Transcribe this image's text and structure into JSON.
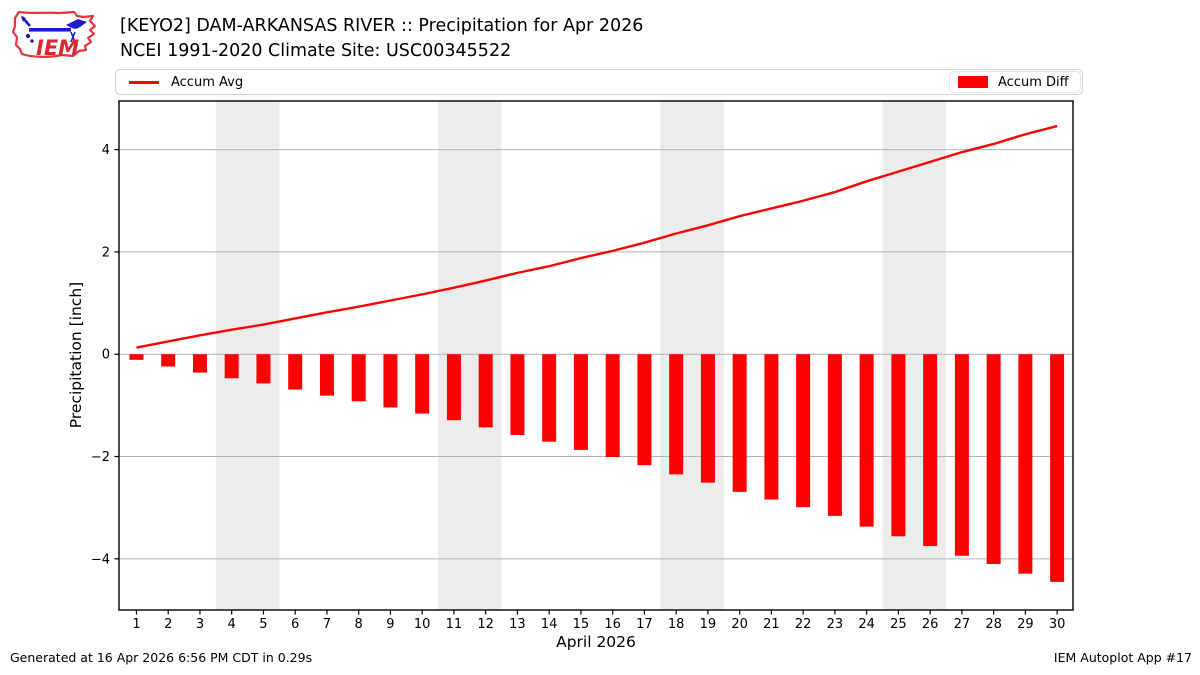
{
  "header": {
    "logo_text": "IEM"
  },
  "chart_data": {
    "type": "bar",
    "title": "[KEYO2] DAM-ARKANSAS RIVER :: Precipitation for Apr 2026",
    "subtitle": "NCEI 1991-2020 Climate Site: USC00345522",
    "xlabel": "April 2026",
    "ylabel": "Precipitation [inch]",
    "x": [
      1,
      2,
      3,
      4,
      5,
      6,
      7,
      8,
      9,
      10,
      11,
      12,
      13,
      14,
      15,
      16,
      17,
      18,
      19,
      20,
      21,
      22,
      23,
      24,
      25,
      26,
      27,
      28,
      29,
      30
    ],
    "series": [
      {
        "name": "Accum Avg",
        "type": "line",
        "color": "#ff0000",
        "values": [
          0.13,
          0.25,
          0.37,
          0.48,
          0.58,
          0.7,
          0.82,
          0.93,
          1.05,
          1.17,
          1.3,
          1.44,
          1.59,
          1.72,
          1.88,
          2.02,
          2.18,
          2.36,
          2.52,
          2.7,
          2.85,
          3.0,
          3.17,
          3.38,
          3.57,
          3.76,
          3.95,
          4.11,
          4.3,
          4.46
        ]
      },
      {
        "name": "Accum Diff",
        "type": "bar",
        "color": "#ff0000",
        "values": [
          -0.11,
          -0.24,
          -0.36,
          -0.47,
          -0.57,
          -0.69,
          -0.81,
          -0.92,
          -1.04,
          -1.16,
          -1.29,
          -1.43,
          -1.58,
          -1.71,
          -1.87,
          -2.01,
          -2.17,
          -2.35,
          -2.51,
          -2.69,
          -2.84,
          -2.99,
          -3.16,
          -3.37,
          -3.56,
          -3.75,
          -3.94,
          -4.1,
          -4.29,
          -4.45
        ]
      }
    ],
    "xlim": [
      0.45,
      30.5
    ],
    "ylim": [
      -5,
      4.95
    ],
    "yticks": [
      4,
      2,
      0,
      -2,
      -4
    ],
    "weekend_bands": [
      [
        3.5,
        5.5
      ],
      [
        10.5,
        12.5
      ],
      [
        17.5,
        19.5
      ],
      [
        24.5,
        26.5
      ]
    ],
    "band_color": "#ececec",
    "grid_color": "#b3b3b3",
    "legend_position": "top, spanning plot width; Accum Avg left, Accum Diff right"
  },
  "footer": {
    "generated": "Generated at 16 Apr 2026 6:56 PM CDT in 0.29s",
    "app": "IEM Autoplot App #17"
  }
}
